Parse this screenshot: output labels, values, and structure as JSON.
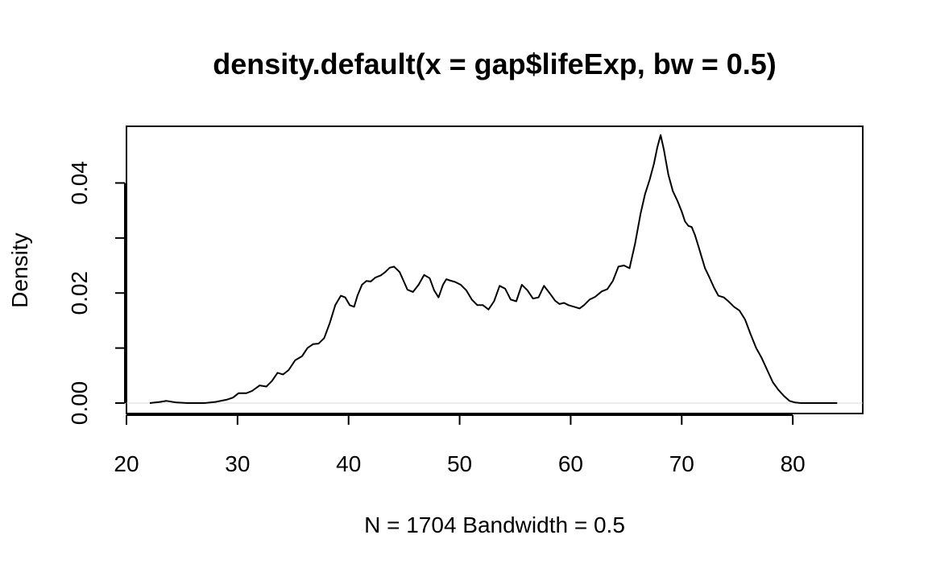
{
  "chart_data": {
    "type": "line",
    "title": "density.default(x = gap$lifeExp, bw = 0.5)",
    "xlabel": "N = 1704   Bandwidth = 0.5",
    "ylabel": "Density",
    "xlim": [
      20,
      86.3
    ],
    "ylim": [
      -0.0019,
      0.0503
    ],
    "x_ticks": [
      20,
      30,
      40,
      50,
      60,
      70,
      80
    ],
    "x_tick_labels": [
      "20",
      "30",
      "40",
      "50",
      "60",
      "70",
      "80"
    ],
    "y_ticks": [
      0.0,
      0.01,
      0.02,
      0.03,
      0.04
    ],
    "y_tick_labels": [
      "0.00",
      "",
      "0.02",
      "",
      "0.04"
    ],
    "grid": false,
    "baseline": 0,
    "series": [
      {
        "x": [
          22.1,
          23.0,
          23.6,
          24.5,
          25.5,
          27.0,
          28.0,
          29.0,
          29.6,
          30.1,
          30.8,
          31.3,
          32.0,
          32.6,
          33.1,
          33.6,
          34.1,
          34.6,
          35.2,
          35.8,
          36.3,
          36.8,
          37.3,
          37.8,
          38.3,
          38.8,
          39.3,
          39.7,
          40.1,
          40.5,
          40.8,
          41.2,
          41.6,
          42.0,
          42.4,
          42.9,
          43.3,
          43.7,
          44.1,
          44.6,
          45.0,
          45.3,
          45.8,
          46.3,
          46.8,
          47.3,
          47.7,
          48.1,
          48.5,
          48.8,
          49.1,
          49.6,
          50.1,
          50.6,
          51.1,
          51.6,
          52.1,
          52.6,
          53.1,
          53.6,
          54.1,
          54.6,
          55.1,
          55.6,
          56.1,
          56.6,
          57.1,
          57.6,
          58.1,
          58.6,
          59.0,
          59.4,
          59.8,
          60.3,
          60.8,
          61.2,
          61.7,
          62.2,
          62.8,
          63.3,
          63.8,
          64.3,
          64.8,
          65.3,
          65.8,
          66.3,
          66.7,
          67.1,
          67.5,
          67.8,
          68.1,
          68.4,
          68.8,
          69.2,
          69.6,
          70.0,
          70.3,
          70.6,
          70.9,
          71.2,
          71.5,
          71.8,
          72.1,
          72.5,
          72.9,
          73.3,
          73.8,
          74.2,
          74.7,
          75.2,
          75.7,
          76.2,
          76.7,
          77.2,
          77.7,
          78.2,
          78.7,
          79.2,
          79.7,
          80.2,
          80.7,
          81.2,
          81.6,
          82.1,
          82.6,
          83.0,
          83.5,
          84.0
        ],
        "y": [
          0.0,
          0.0002,
          0.0004,
          0.0001,
          0.0,
          0.0,
          0.0002,
          0.0006,
          0.001,
          0.0018,
          0.0018,
          0.0022,
          0.0032,
          0.003,
          0.004,
          0.0055,
          0.0052,
          0.006,
          0.0078,
          0.0085,
          0.01,
          0.0107,
          0.0108,
          0.0118,
          0.0145,
          0.0178,
          0.0195,
          0.0192,
          0.0178,
          0.0175,
          0.0195,
          0.0215,
          0.0222,
          0.0221,
          0.0228,
          0.0232,
          0.0238,
          0.0246,
          0.0248,
          0.0238,
          0.022,
          0.0206,
          0.0202,
          0.0215,
          0.0233,
          0.0227,
          0.0205,
          0.0192,
          0.0215,
          0.0225,
          0.0223,
          0.022,
          0.0215,
          0.0205,
          0.0188,
          0.0178,
          0.0178,
          0.017,
          0.0185,
          0.0213,
          0.0208,
          0.0188,
          0.0185,
          0.0215,
          0.0205,
          0.019,
          0.0192,
          0.0213,
          0.02,
          0.0186,
          0.018,
          0.0182,
          0.0178,
          0.0175,
          0.0172,
          0.0178,
          0.0188,
          0.0193,
          0.0203,
          0.0207,
          0.0222,
          0.0248,
          0.025,
          0.0245,
          0.029,
          0.0345,
          0.038,
          0.0405,
          0.0435,
          0.0465,
          0.0487,
          0.046,
          0.0415,
          0.0385,
          0.0368,
          0.0348,
          0.033,
          0.0322,
          0.032,
          0.0305,
          0.0285,
          0.0265,
          0.0245,
          0.0228,
          0.021,
          0.0195,
          0.0192,
          0.0185,
          0.0175,
          0.0168,
          0.0152,
          0.0125,
          0.01,
          0.0082,
          0.006,
          0.0038,
          0.0024,
          0.0013,
          0.0004,
          0.0001,
          0.0,
          0.0,
          0.0,
          0.0,
          0.0,
          0.0,
          0.0,
          0.0
        ]
      }
    ]
  }
}
